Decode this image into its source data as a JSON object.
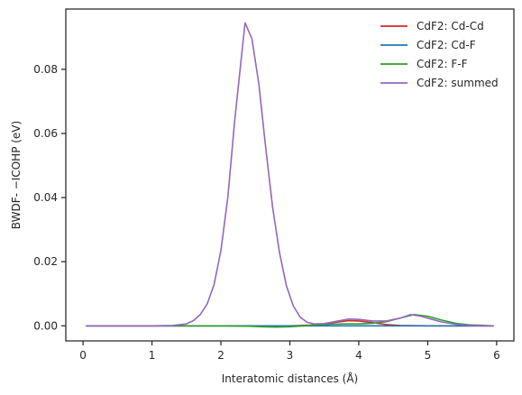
{
  "chart_data": {
    "type": "line",
    "title": "",
    "xlabel": "Interatomic distances (Å)",
    "ylabel": "BWDF- −ICOHP (eV)",
    "xlim": [
      -0.25,
      6.25
    ],
    "ylim": [
      -0.0047,
      0.0988
    ],
    "xticks": [
      0,
      1,
      2,
      3,
      4,
      5,
      6
    ],
    "xtick_labels": [
      "0",
      "1",
      "2",
      "3",
      "4",
      "5",
      "6"
    ],
    "yticks": [
      0.0,
      0.02,
      0.04,
      0.06,
      0.08
    ],
    "ytick_labels": [
      "0.00",
      "0.02",
      "0.04",
      "0.06",
      "0.08"
    ],
    "grid": false,
    "legend_position": "top-right",
    "series": [
      {
        "name": "CdF2: Cd-Cd",
        "color": "#d62728",
        "x": [
          0.05,
          1.0,
          2.0,
          2.5,
          3.0,
          3.3,
          3.5,
          3.7,
          3.85,
          4.0,
          4.2,
          4.4,
          4.6,
          5.0,
          5.95
        ],
        "y": [
          0.0,
          0.0,
          0.0,
          0.0,
          0.0,
          0.0002,
          0.0006,
          0.0012,
          0.0016,
          0.0015,
          0.001,
          0.0004,
          0.0001,
          0.0,
          0.0
        ]
      },
      {
        "name": "CdF2: Cd-F",
        "color": "#1f77b4",
        "x": [
          0.05,
          1.0,
          2.0,
          3.0,
          3.5,
          4.0,
          5.0,
          5.95
        ],
        "y": [
          0.0,
          0.0,
          0.0,
          0.0,
          0.0,
          0.0,
          0.0,
          0.0
        ]
      },
      {
        "name": "CdF2: F-F",
        "color": "#2ca02c",
        "x": [
          0.05,
          1.0,
          2.0,
          2.4,
          2.6,
          2.8,
          3.0,
          3.2,
          3.4,
          3.6,
          3.8,
          4.0,
          4.2,
          4.4,
          4.6,
          4.8,
          5.0,
          5.2,
          5.4,
          5.6,
          5.95
        ],
        "y": [
          0.0,
          0.0,
          0.0,
          -0.0001,
          -0.0003,
          -0.0004,
          -0.0003,
          0.0,
          0.0003,
          0.0005,
          0.0006,
          0.0006,
          0.0008,
          0.0013,
          0.0024,
          0.0035,
          0.003,
          0.0018,
          0.0008,
          0.0003,
          0.0
        ]
      },
      {
        "name": "CdF2: summed",
        "color": "#9467bd",
        "x": [
          0.05,
          0.5,
          1.0,
          1.3,
          1.5,
          1.6,
          1.7,
          1.8,
          1.9,
          2.0,
          2.1,
          2.2,
          2.35,
          2.45,
          2.55,
          2.65,
          2.75,
          2.85,
          2.95,
          3.05,
          3.15,
          3.25,
          3.35,
          3.5,
          3.7,
          3.85,
          4.0,
          4.2,
          4.4,
          4.6,
          4.75,
          4.9,
          5.05,
          5.2,
          5.4,
          5.6,
          5.8,
          5.95
        ],
        "y": [
          0.0,
          0.0,
          0.0,
          0.0001,
          0.0006,
          0.0016,
          0.0035,
          0.0068,
          0.0128,
          0.0235,
          0.04,
          0.064,
          0.0945,
          0.0895,
          0.0755,
          0.0555,
          0.037,
          0.0228,
          0.0125,
          0.0062,
          0.0027,
          0.0011,
          0.0006,
          0.0007,
          0.0015,
          0.0021,
          0.002,
          0.0015,
          0.0015,
          0.0024,
          0.0035,
          0.003,
          0.0021,
          0.0012,
          0.0005,
          0.0002,
          0.0,
          0.0
        ]
      }
    ]
  }
}
